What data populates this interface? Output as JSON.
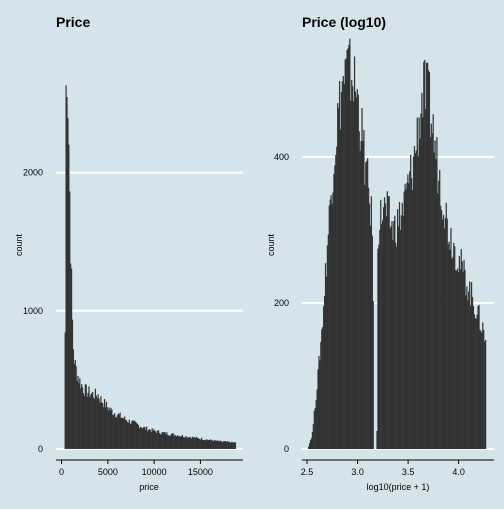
{
  "chart_data": [
    {
      "type": "bar",
      "title": "Price",
      "xlabel": "price",
      "ylabel": "count",
      "xlim": [
        -600,
        19600
      ],
      "ylim": [
        -80,
        2960
      ],
      "x_ticks": [
        0,
        5000,
        10000,
        15000
      ],
      "x_tick_labels": [
        "0",
        "5000",
        "10000",
        "15000"
      ],
      "y_ticks": [
        0,
        1000,
        2000
      ],
      "y_tick_labels": [
        "0",
        "1000",
        "2000"
      ],
      "grid": "horizontal",
      "bar_color": "#333333",
      "x_range": [
        326,
        18823
      ],
      "profile": [
        [
          326,
          250
        ],
        [
          380,
          900
        ],
        [
          450,
          2400
        ],
        [
          500,
          2800
        ],
        [
          560,
          2850
        ],
        [
          620,
          2650
        ],
        [
          700,
          2500
        ],
        [
          780,
          2200
        ],
        [
          860,
          1900
        ],
        [
          950,
          1550
        ],
        [
          1050,
          1250
        ],
        [
          1150,
          950
        ],
        [
          1250,
          750
        ],
        [
          1400,
          620
        ],
        [
          1550,
          580
        ],
        [
          1700,
          540
        ],
        [
          1900,
          500
        ],
        [
          2100,
          470
        ],
        [
          2300,
          440
        ],
        [
          2600,
          420
        ],
        [
          2900,
          410
        ],
        [
          3200,
          400
        ],
        [
          3600,
          390
        ],
        [
          3900,
          395
        ],
        [
          4200,
          360
        ],
        [
          4600,
          330
        ],
        [
          5000,
          300
        ],
        [
          5500,
          270
        ],
        [
          6000,
          250
        ],
        [
          6500,
          230
        ],
        [
          7000,
          210
        ],
        [
          7500,
          195
        ],
        [
          8000,
          180
        ],
        [
          8500,
          165
        ],
        [
          9000,
          150
        ],
        [
          10000,
          130
        ],
        [
          11000,
          115
        ],
        [
          12000,
          105
        ],
        [
          13000,
          95
        ],
        [
          14000,
          85
        ],
        [
          15000,
          75
        ],
        [
          16000,
          65
        ],
        [
          17000,
          55
        ],
        [
          18000,
          50
        ],
        [
          18823,
          45
        ]
      ]
    },
    {
      "type": "bar",
      "title": "Price (log10)",
      "xlabel": "log10(price + 1)",
      "ylabel": "count",
      "xlim": [
        2.45,
        4.35
      ],
      "ylim": [
        -15,
        560
      ],
      "x_ticks": [
        2.5,
        3.0,
        3.5,
        4.0
      ],
      "x_tick_labels": [
        "2.5",
        "3.0",
        "3.5",
        "4.0"
      ],
      "y_ticks": [
        0,
        200,
        400
      ],
      "y_tick_labels": [
        "0",
        "200",
        "400"
      ],
      "grid": "horizontal",
      "bar_color": "#333333",
      "x_range": [
        2.51,
        4.27
      ],
      "profile": [
        [
          2.51,
          2
        ],
        [
          2.55,
          20
        ],
        [
          2.6,
          90
        ],
        [
          2.65,
          170
        ],
        [
          2.7,
          280
        ],
        [
          2.75,
          380
        ],
        [
          2.8,
          450
        ],
        [
          2.85,
          500
        ],
        [
          2.9,
          520
        ],
        [
          2.95,
          510
        ],
        [
          3.0,
          480
        ],
        [
          3.05,
          420
        ],
        [
          3.1,
          360
        ],
        [
          3.15,
          300
        ],
        [
          3.16,
          0
        ],
        [
          3.19,
          0
        ],
        [
          3.2,
          300
        ],
        [
          3.25,
          330
        ],
        [
          3.3,
          320
        ],
        [
          3.35,
          300
        ],
        [
          3.4,
          310
        ],
        [
          3.45,
          330
        ],
        [
          3.5,
          360
        ],
        [
          3.55,
          390
        ],
        [
          3.6,
          440
        ],
        [
          3.65,
          490
        ],
        [
          3.7,
          480
        ],
        [
          3.75,
          430
        ],
        [
          3.8,
          380
        ],
        [
          3.85,
          340
        ],
        [
          3.9,
          300
        ],
        [
          3.95,
          280
        ],
        [
          4.0,
          260
        ],
        [
          4.05,
          240
        ],
        [
          4.1,
          220
        ],
        [
          4.15,
          200
        ],
        [
          4.2,
          180
        ],
        [
          4.25,
          160
        ],
        [
          4.27,
          140
        ]
      ]
    }
  ]
}
